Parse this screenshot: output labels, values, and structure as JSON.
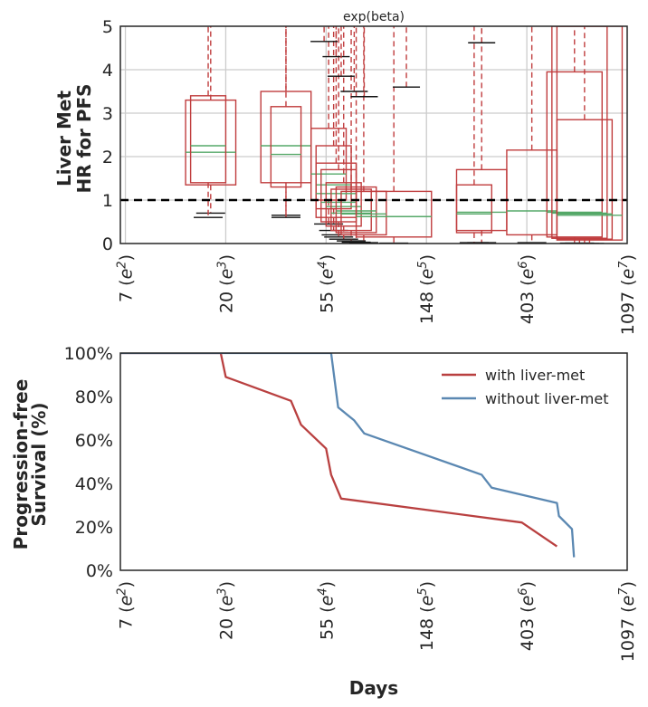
{
  "chart_data": [
    {
      "type": "boxplot",
      "title": "exp(beta)",
      "ylabel_lines": [
        "Liver Met",
        "HR for PFS"
      ],
      "ylim": [
        0,
        5
      ],
      "yticks": [
        0,
        1,
        2,
        3,
        4,
        5
      ],
      "x_scale": "log",
      "xlim_log": [
        1.95,
        7.0
      ],
      "xticks": [
        {
          "num": "7",
          "exp": "2",
          "pos": 2
        },
        {
          "num": "20",
          "exp": "3",
          "pos": 3
        },
        {
          "num": "55",
          "exp": "4",
          "pos": 4
        },
        {
          "num": "148",
          "exp": "5",
          "pos": 5
        },
        {
          "num": "403",
          "exp": "6",
          "pos": 6
        },
        {
          "num": "1097",
          "exp": "7",
          "pos": 7
        }
      ],
      "reference_line": 1,
      "boxes": [
        {
          "x0": 2.6,
          "x1": 3.1,
          "q1": 1.35,
          "q3": 3.3,
          "median": 2.1,
          "whisker_lo": 0.7
        },
        {
          "x0": 2.65,
          "x1": 3.0,
          "q1": 1.4,
          "q3": 3.4,
          "median": 2.25,
          "whisker_lo": 0.6
        },
        {
          "x0": 3.35,
          "x1": 3.85,
          "q1": 1.4,
          "q3": 3.5,
          "median": 2.25,
          "whisker_lo": 0.65
        },
        {
          "x0": 3.45,
          "x1": 3.75,
          "q1": 1.3,
          "q3": 3.15,
          "median": 2.05,
          "whisker_lo": 0.6
        },
        {
          "x0": 3.85,
          "x1": 4.2,
          "q1": 1.0,
          "q3": 2.65,
          "median": 1.6,
          "whisker_lo": 0.45
        },
        {
          "x0": 3.9,
          "x1": 4.25,
          "q1": 0.8,
          "q3": 2.25,
          "median": 1.35,
          "whisker_lo": 0.3
        },
        {
          "x0": 3.9,
          "x1": 4.3,
          "q1": 0.6,
          "q3": 1.85,
          "median": 1.15,
          "whisker_lo": 0.2
        },
        {
          "x0": 3.95,
          "x1": 4.3,
          "q1": 0.5,
          "q3": 1.7,
          "median": 0.95,
          "whisker_lo": 0.15
        },
        {
          "x0": 4.0,
          "x1": 4.35,
          "q1": 0.4,
          "q3": 1.4,
          "median": 0.85,
          "whisker_lo": 0.1
        },
        {
          "x0": 4.05,
          "x1": 4.45,
          "q1": 0.3,
          "q3": 1.25,
          "median": 0.7,
          "whisker_lo": 0.06
        },
        {
          "x0": 4.1,
          "x1": 4.5,
          "q1": 0.25,
          "q3": 1.3,
          "median": 0.75,
          "whisker_lo": 0.03
        },
        {
          "x0": 4.15,
          "x1": 4.6,
          "q1": 0.2,
          "q3": 1.2,
          "median": 0.68,
          "whisker_lo": 0.02
        },
        {
          "x0": 4.3,
          "x1": 5.05,
          "q1": 0.15,
          "q3": 1.2,
          "median": 0.62,
          "whisker_lo": 0.01
        },
        {
          "x0": 5.3,
          "x1": 5.8,
          "q1": 0.3,
          "q3": 1.7,
          "median": 0.72,
          "whisker_lo": 0.02
        },
        {
          "x0": 5.3,
          "x1": 5.65,
          "q1": 0.25,
          "q3": 1.35,
          "median": 0.68,
          "whisker_lo": 0.02
        },
        {
          "x0": 5.8,
          "x1": 6.3,
          "q1": 0.2,
          "q3": 2.15,
          "median": 0.75,
          "whisker_lo": 0.02
        },
        {
          "x0": 6.2,
          "x1": 6.75,
          "q1": 0.15,
          "q3": 3.95,
          "median": 0.72,
          "whisker_lo": 0.01
        },
        {
          "x0": 6.25,
          "x1": 6.8,
          "q1": 0.12,
          "q3": 5.0,
          "median": 0.7,
          "whisker_lo": 0.01
        },
        {
          "x0": 6.3,
          "x1": 6.85,
          "q1": 0.1,
          "q3": 2.85,
          "median": 0.68,
          "whisker_lo": 0.0
        },
        {
          "x0": 6.3,
          "x1": 6.95,
          "q1": 0.08,
          "q3": 5.0,
          "median": 0.65,
          "whisker_lo": 0.0
        }
      ],
      "upper_whisker_caps": [
        {
          "x": 3.98,
          "y": 4.65
        },
        {
          "x": 4.1,
          "y": 4.3
        },
        {
          "x": 4.15,
          "y": 3.85
        },
        {
          "x": 4.28,
          "y": 3.5
        },
        {
          "x": 4.38,
          "y": 3.38
        },
        {
          "x": 4.8,
          "y": 3.6
        },
        {
          "x": 5.55,
          "y": 4.62
        }
      ]
    },
    {
      "type": "line",
      "xlabel": "Days",
      "ylabel_lines": [
        "Progression-free",
        "Survival (%)"
      ],
      "ylim": [
        0,
        100
      ],
      "yticks": [
        "0%",
        "20%",
        "40%",
        "60%",
        "80%",
        "100%"
      ],
      "x_scale": "log",
      "xlim_log": [
        1.95,
        7.0
      ],
      "xticks": [
        {
          "num": "7",
          "exp": "2",
          "pos": 2
        },
        {
          "num": "20",
          "exp": "3",
          "pos": 3
        },
        {
          "num": "55",
          "exp": "4",
          "pos": 4
        },
        {
          "num": "148",
          "exp": "5",
          "pos": 5
        },
        {
          "num": "403",
          "exp": "6",
          "pos": 6
        },
        {
          "num": "1097",
          "exp": "7",
          "pos": 7
        }
      ],
      "series": [
        {
          "name": "with liver-met",
          "color": "#b94040",
          "points": [
            [
              1.95,
              100
            ],
            [
              2.95,
              100
            ],
            [
              3.0,
              89
            ],
            [
              3.65,
              78
            ],
            [
              3.75,
              67
            ],
            [
              4.0,
              56
            ],
            [
              4.05,
              44
            ],
            [
              4.15,
              33
            ],
            [
              5.95,
              22
            ],
            [
              6.3,
              11
            ]
          ]
        },
        {
          "name": "without liver-met",
          "color": "#5b88b2",
          "points": [
            [
              1.95,
              100
            ],
            [
              4.05,
              100
            ],
            [
              4.12,
              75
            ],
            [
              4.28,
              69
            ],
            [
              4.38,
              63
            ],
            [
              5.55,
              44
            ],
            [
              5.65,
              38
            ],
            [
              6.3,
              31
            ],
            [
              6.32,
              25
            ],
            [
              6.45,
              19
            ],
            [
              6.47,
              6
            ]
          ]
        }
      ],
      "legend_position": "top-right"
    }
  ]
}
